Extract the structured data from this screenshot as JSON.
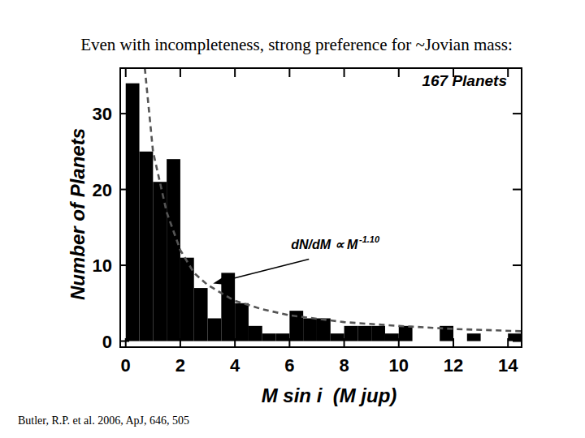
{
  "chart_data": {
    "type": "histogram",
    "title": "Even with incompleteness, strong preference for ~Jovian mass:",
    "source": "Butler, R.P. et al. 2006, ApJ, 646, 505",
    "x_label": "M sin i  (M jup)",
    "y_label": "Number of Planets",
    "bins": [
      0,
      0.5,
      1,
      1.5,
      2,
      2.5,
      3,
      3.5,
      4,
      4.5,
      5,
      5.5,
      6,
      6.5,
      7,
      7.5,
      8,
      8.5,
      9,
      9.5,
      10,
      10.5,
      11,
      11.5,
      12,
      12.5,
      13,
      13.5,
      14,
      14.5
    ],
    "values": [
      34,
      25,
      21,
      24,
      11,
      7,
      3,
      9,
      5,
      2,
      1,
      1,
      4,
      3,
      3,
      1,
      2,
      2,
      2,
      1,
      2,
      0,
      0,
      2,
      0,
      1,
      0,
      0,
      1
    ],
    "color": "#000000",
    "xlim": [
      -0.2,
      14.5
    ],
    "ylim": [
      -0.8,
      36
    ],
    "xticks": [
      0,
      2,
      4,
      6,
      8,
      10,
      12,
      14
    ],
    "yticks": [
      0,
      10,
      20,
      30
    ],
    "fit_line": {
      "x": [
        0.7,
        1,
        1.5,
        2,
        2.5,
        3,
        4,
        5,
        6,
        8,
        10,
        12,
        14.5
      ],
      "y": [
        36,
        25,
        17,
        12,
        9,
        7.4,
        5.3,
        4.2,
        3.4,
        2.5,
        2,
        1.6,
        1.3
      ],
      "color": "#555555",
      "line_style": "dashed"
    },
    "annotations": [
      {
        "text": "167 Planets"
      },
      {
        "text": "dN/dM ∝ M",
        "superscript": "-1.10",
        "x": 3.2,
        "y": 7.6
      }
    ]
  }
}
